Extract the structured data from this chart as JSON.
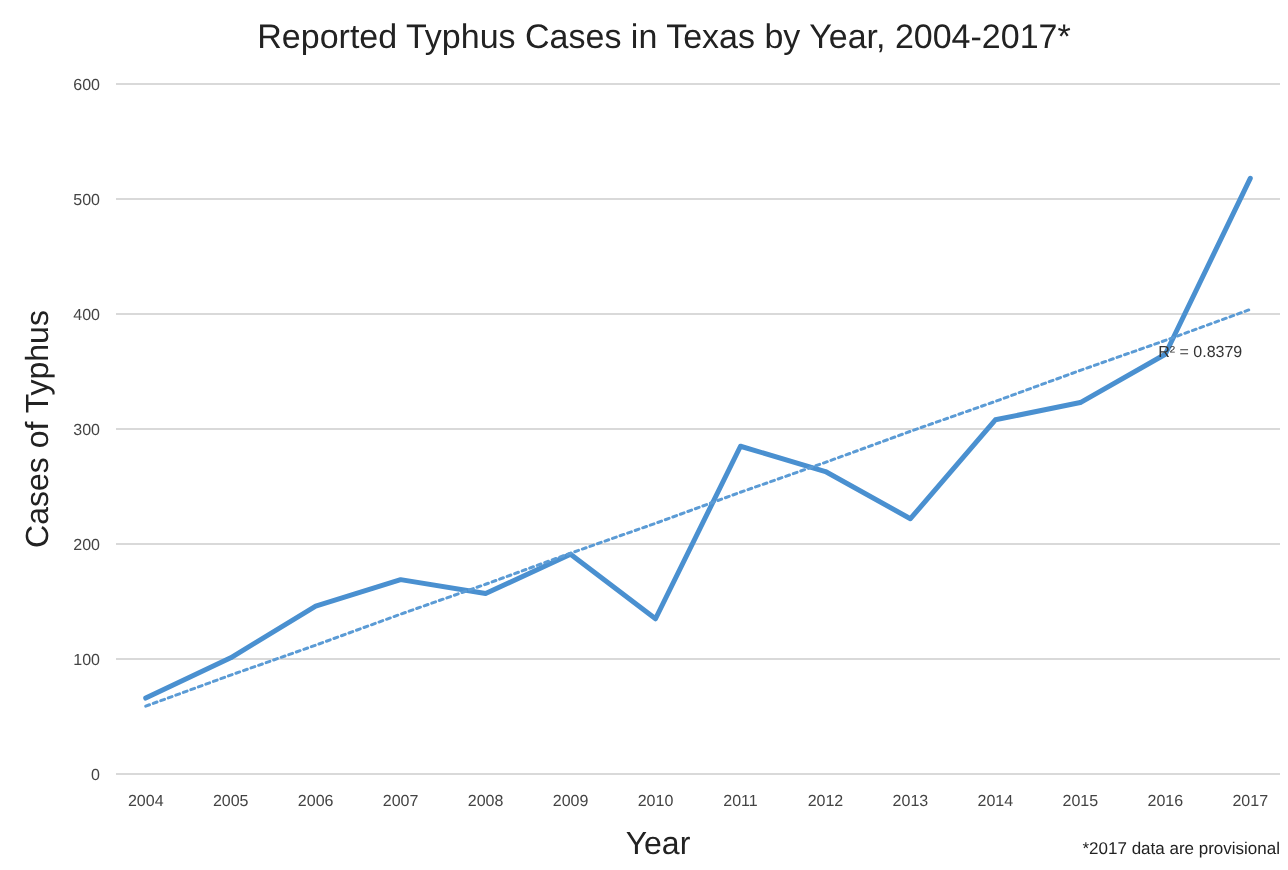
{
  "chart_data": {
    "type": "line",
    "title": "Reported Typhus Cases in Texas by Year, 2004-2017*",
    "xlabel": "Year",
    "ylabel": "Cases of Typhus",
    "categories": [
      "2004",
      "2005",
      "2006",
      "2007",
      "2008",
      "2009",
      "2010",
      "2011",
      "2012",
      "2013",
      "2014",
      "2015",
      "2016",
      "2017"
    ],
    "series": [
      {
        "color": "#4a90d0",
        "values": [
          66,
          101,
          146,
          169,
          157,
          191,
          135,
          285,
          263,
          222,
          308,
          323,
          365,
          518
        ]
      },
      {
        "type": "line",
        "color": "#5b9bd5",
        "line_style": "dotted",
        "values": [
          59,
          86,
          112,
          139,
          165,
          192,
          218,
          245,
          271,
          298,
          324,
          351,
          377,
          404
        ]
      }
    ],
    "ylim": [
      0,
      600
    ],
    "yticks": [
      0,
      100,
      200,
      300,
      400,
      500,
      600
    ],
    "grid": "y",
    "annotations": [
      {
        "text": "R² = 0.8379",
        "x": "2017",
        "y": 404
      },
      "*2017 data are provisional"
    ]
  }
}
